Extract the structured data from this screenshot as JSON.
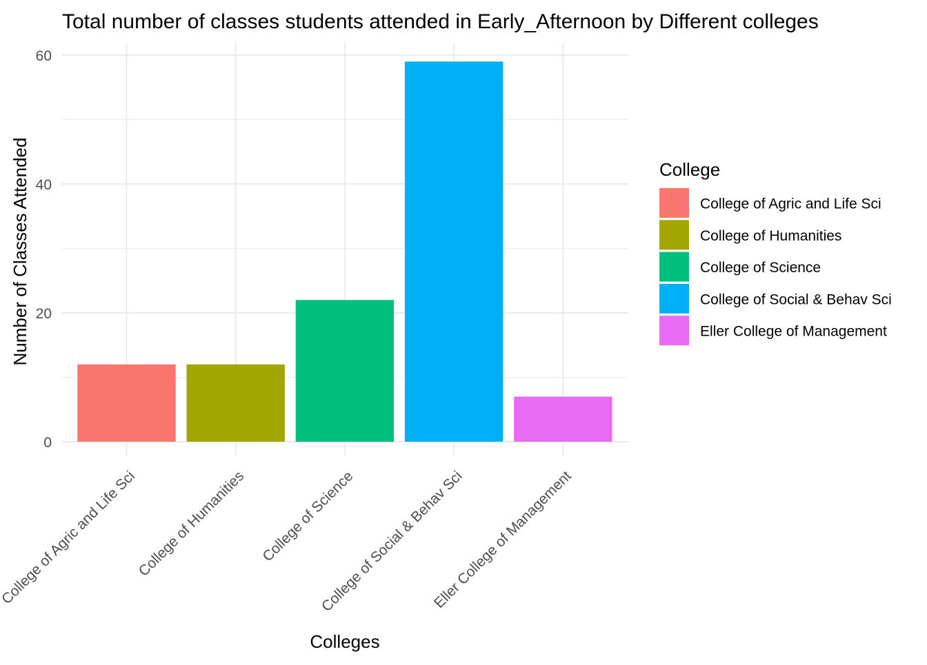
{
  "chart_data": {
    "type": "bar",
    "title": "Total number of classes students attended in  Early_Afternoon by Different colleges",
    "xlabel": "Colleges",
    "ylabel": "Number of Classes Attended",
    "categories": [
      "College of Agric and Life Sci",
      "College of Humanities",
      "College of Science",
      "College of Social & Behav Sci",
      "Eller College of Management"
    ],
    "values": [
      12,
      12,
      22,
      59,
      7
    ],
    "colors": [
      "#F8766D",
      "#A3A500",
      "#00BF7D",
      "#00B0F6",
      "#E76BF3"
    ],
    "ylim": [
      0,
      60
    ],
    "yticks": [
      0,
      20,
      40,
      60
    ],
    "grid": true,
    "legend": {
      "title": "College",
      "placement": "right",
      "entries": [
        "College of Agric and Life Sci",
        "College of Humanities",
        "College of Science",
        "College of Social & Behav Sci",
        "Eller College of Management"
      ]
    }
  }
}
